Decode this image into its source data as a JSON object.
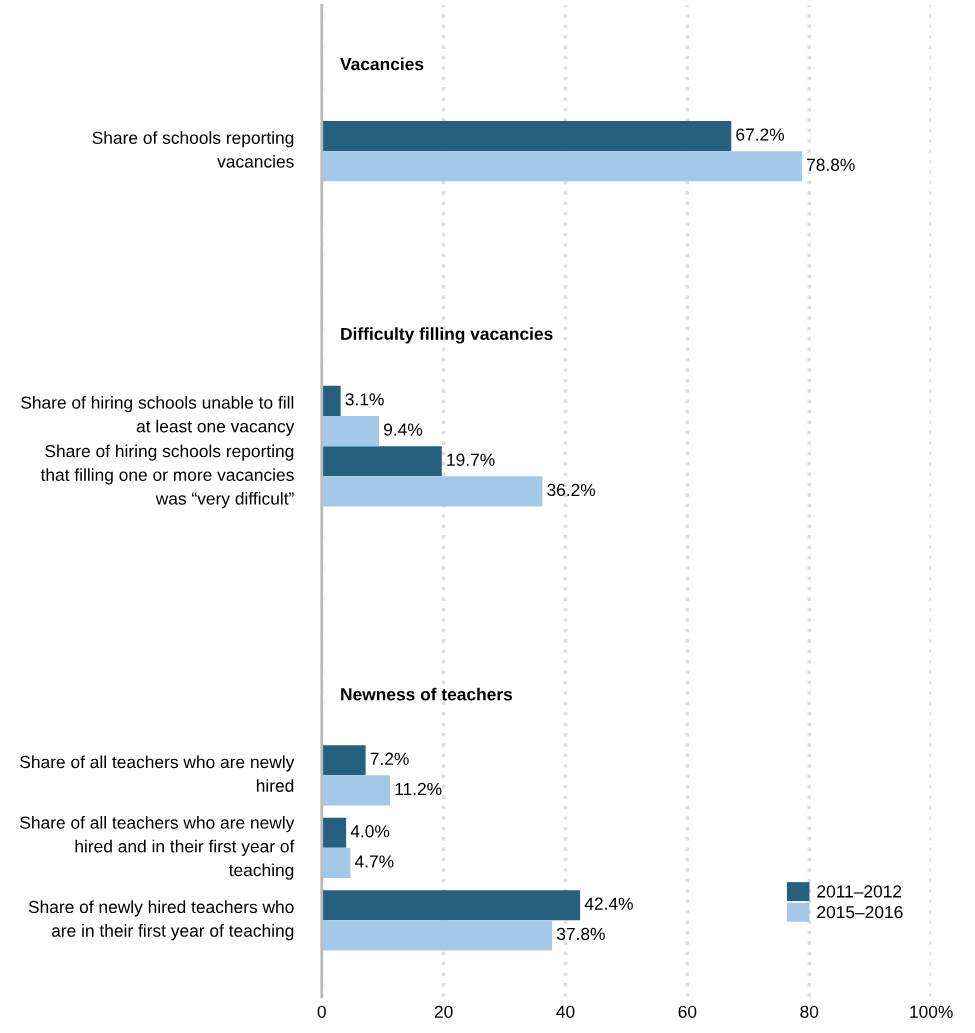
{
  "chart_data": {
    "type": "bar",
    "orientation": "horizontal",
    "categories": [
      "Share of schools reporting vacancies",
      "Share of hiring schools unable to fill at least one vacancy",
      "Share of hiring schools reporting that filling one or more vacancies was “very difficult”",
      "Share of all teachers who are newly hired",
      "Share of all teachers who are newly hired and in their first year of teaching",
      "Share of newly hired teachers who are in their first year of teaching"
    ],
    "series": [
      {
        "name": "2011–2012",
        "color": "#25607f",
        "values": [
          67.2,
          3.1,
          19.7,
          7.2,
          4.0,
          42.4
        ],
        "value_labels": [
          "67.2%",
          "3.1%",
          "19.7%",
          "7.2%",
          "4.0%",
          "42.4%"
        ]
      },
      {
        "name": "2015–2016",
        "color": "#a3c8e8",
        "values": [
          78.8,
          9.4,
          36.2,
          11.2,
          4.7,
          37.8
        ],
        "value_labels": [
          "78.8%",
          "9.4%",
          "36.2%",
          "11.2%",
          "4.7%",
          "37.8%"
        ]
      }
    ],
    "annotations": [
      "Vacancies",
      "Difficulty filling vacancies",
      "Newness of teachers"
    ],
    "xlim": [
      0,
      100
    ],
    "xticks": [
      0,
      20,
      40,
      60,
      80,
      {
        "value": 100,
        "label": "100%"
      }
    ],
    "grid": "x",
    "legend": "bottom right"
  }
}
